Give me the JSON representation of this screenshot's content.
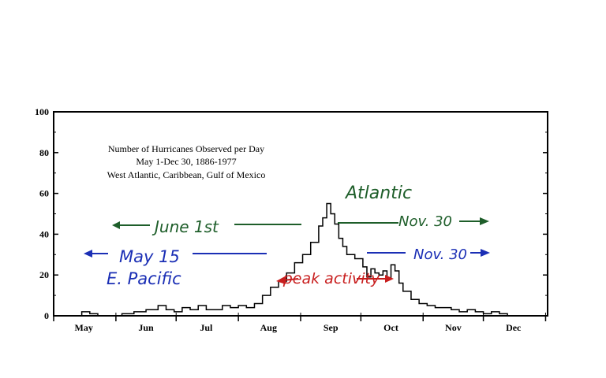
{
  "chart_data": {
    "type": "line",
    "title_lines": [
      "Number of Hurricanes Observed per Day",
      "May 1-Dec 30, 1886-1977",
      "West Atlantic, Caribbean, Gulf of Mexico"
    ],
    "xlabel": "",
    "ylabel": "",
    "ylim": [
      0,
      100
    ],
    "xlim": [
      0,
      246
    ],
    "yticks": [
      0,
      20,
      40,
      60,
      80,
      100
    ],
    "xticks": [
      {
        "label": "May",
        "day": 15
      },
      {
        "label": "Jun",
        "day": 46
      },
      {
        "label": "Jul",
        "day": 76
      },
      {
        "label": "Aug",
        "day": 107
      },
      {
        "label": "Sep",
        "day": 138
      },
      {
        "label": "Oct",
        "day": 168
      },
      {
        "label": "Nov",
        "day": 199
      },
      {
        "label": "Dec",
        "day": 229
      }
    ],
    "grid": false,
    "legend": "none",
    "series": [
      {
        "color": "#000000",
        "x": [
          0,
          10,
          14,
          18,
          22,
          30,
          34,
          40,
          46,
          52,
          56,
          60,
          64,
          68,
          72,
          76,
          80,
          84,
          88,
          92,
          96,
          100,
          104,
          108,
          112,
          116,
          120,
          124,
          128,
          132,
          134,
          136,
          138,
          140,
          142,
          144,
          146,
          150,
          154,
          156,
          158,
          160,
          162,
          164,
          166,
          168,
          170,
          172,
          174,
          178,
          182,
          186,
          190,
          194,
          198,
          202,
          206,
          210,
          214,
          218,
          222,
          226,
          230
        ],
        "y": [
          0,
          0,
          2,
          1,
          0,
          0,
          1,
          2,
          3,
          5,
          3,
          2,
          4,
          3,
          5,
          3,
          3,
          5,
          4,
          5,
          4,
          6,
          10,
          14,
          17,
          21,
          26,
          30,
          36,
          44,
          48,
          55,
          50,
          45,
          38,
          34,
          30,
          28,
          24,
          19,
          23,
          21,
          20,
          22,
          18,
          25,
          22,
          16,
          12,
          8,
          6,
          5,
          4,
          4,
          3,
          2,
          3,
          2,
          1,
          2,
          1,
          0,
          0
        ]
      }
    ],
    "annotations": {
      "atlantic": {
        "label": "Atlantic",
        "start": "June 1st",
        "end": "Nov. 30",
        "color": "#1e5e2a"
      },
      "pacific": {
        "label": "E. Pacific",
        "start": "May 15",
        "end": "Nov. 30",
        "color": "#1b2fb5"
      },
      "peak": {
        "label": "peak activity",
        "color": "#c81e1e"
      }
    }
  }
}
